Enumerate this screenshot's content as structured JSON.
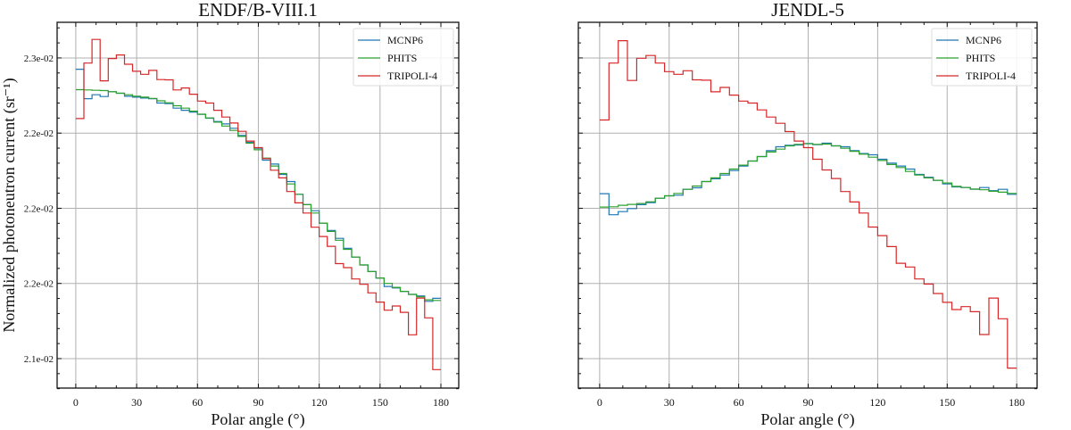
{
  "chart_data": [
    {
      "type": "line",
      "step": true,
      "title": "ENDF/B-VIII.1",
      "xlabel": "Polar angle (°)",
      "ylabel": "Normalized photoneutron current (sr⁻¹)",
      "xlim": [
        -9.2,
        188.8
      ],
      "ylim": [
        0.020804,
        0.023237
      ],
      "xticks": [
        0,
        30,
        60,
        90,
        120,
        150,
        180
      ],
      "xtick_labels": [
        "0",
        "30",
        "60",
        "90",
        "120",
        "150",
        "180"
      ],
      "yticks": [
        0.023,
        0.0225,
        0.022,
        0.0215,
        0.021
      ],
      "ytick_labels": [
        "2.3e-02",
        "2.2e-02",
        "2.2e-02",
        "2.2e-02",
        "2.1e-02"
      ],
      "grid": true,
      "legend": "top-right",
      "bin_width": 4,
      "series": [
        {
          "name": "MCNP6",
          "color": "#1f77b4",
          "values": [
            0.022925,
            0.022729,
            0.022755,
            0.022743,
            0.022775,
            0.022765,
            0.022745,
            0.022739,
            0.022733,
            0.022729,
            0.0227,
            0.022696,
            0.022666,
            0.022652,
            0.02264,
            0.022625,
            0.022599,
            0.022577,
            0.022561,
            0.022532,
            0.022484,
            0.022439,
            0.022399,
            0.02232,
            0.022294,
            0.022225,
            0.022178,
            0.022093,
            0.022024,
            0.021984,
            0.021901,
            0.021852,
            0.0218,
            0.021733,
            0.021676,
            0.021623,
            0.021579,
            0.021536,
            0.02148,
            0.02147,
            0.021447,
            0.021427,
            0.021417,
            0.021381,
            0.021401
          ]
        },
        {
          "name": "PHITS",
          "color": "#2ca02c",
          "values": [
            0.022789,
            0.022787,
            0.022785,
            0.022783,
            0.022775,
            0.022765,
            0.022755,
            0.022745,
            0.022739,
            0.022731,
            0.022715,
            0.022702,
            0.022682,
            0.022666,
            0.022646,
            0.022626,
            0.022601,
            0.022573,
            0.022547,
            0.022518,
            0.022478,
            0.022433,
            0.022389,
            0.022334,
            0.022281,
            0.022231,
            0.022162,
            0.022093,
            0.022024,
            0.021968,
            0.021901,
            0.021846,
            0.021787,
            0.021727,
            0.021676,
            0.021623,
            0.021579,
            0.021536,
            0.0215,
            0.021474,
            0.021447,
            0.021427,
            0.021411,
            0.021391,
            0.021387
          ]
        },
        {
          "name": "TRIPOLI-4",
          "color": "#d62728",
          "values": [
            0.022597,
            0.022966,
            0.023123,
            0.022848,
            0.022996,
            0.02302,
            0.022958,
            0.022911,
            0.022891,
            0.022917,
            0.022856,
            0.022854,
            0.022787,
            0.0228,
            0.022759,
            0.022713,
            0.0227,
            0.022652,
            0.022607,
            0.022567,
            0.022512,
            0.022447,
            0.022403,
            0.02233,
            0.022253,
            0.022202,
            0.022111,
            0.022036,
            0.021968,
            0.021874,
            0.021812,
            0.021747,
            0.021632,
            0.021605,
            0.02153,
            0.021494,
            0.021437,
            0.021376,
            0.021322,
            0.02135,
            0.021308,
            0.021158,
            0.021403,
            0.021271,
            0.020927
          ]
        }
      ]
    },
    {
      "type": "line",
      "step": true,
      "title": "JENDL-5",
      "xlabel": "Polar angle (°)",
      "ylabel": "",
      "xlim": [
        -9.2,
        188.8
      ],
      "ylim": [
        0.020804,
        0.023237
      ],
      "xticks": [
        0,
        30,
        60,
        90,
        120,
        150,
        180
      ],
      "xtick_labels": [
        "0",
        "30",
        "60",
        "90",
        "120",
        "150",
        "180"
      ],
      "yticks": [
        0.023,
        0.0225,
        0.022,
        0.0215,
        0.021
      ],
      "ytick_labels": [],
      "grid": true,
      "legend": "top-right",
      "bin_width": 4,
      "series": [
        {
          "name": "MCNP6",
          "color": "#1f77b4",
          "values": [
            0.022097,
            0.021957,
            0.021978,
            0.021998,
            0.022024,
            0.022038,
            0.022067,
            0.022083,
            0.022087,
            0.022126,
            0.022136,
            0.022178,
            0.022196,
            0.022221,
            0.022251,
            0.022281,
            0.022314,
            0.022344,
            0.022383,
            0.022409,
            0.022419,
            0.022421,
            0.022431,
            0.022423,
            0.022433,
            0.022415,
            0.022409,
            0.022383,
            0.022364,
            0.022356,
            0.022326,
            0.0223,
            0.022281,
            0.022261,
            0.022225,
            0.022206,
            0.022186,
            0.022162,
            0.022142,
            0.022138,
            0.022126,
            0.022138,
            0.022117,
            0.022126,
            0.022093
          ]
        },
        {
          "name": "PHITS",
          "color": "#2ca02c",
          "values": [
            0.022008,
            0.02201,
            0.02202,
            0.022026,
            0.022032,
            0.022043,
            0.022067,
            0.022083,
            0.022099,
            0.022126,
            0.022148,
            0.022178,
            0.022202,
            0.022231,
            0.022261,
            0.022287,
            0.022314,
            0.022344,
            0.022374,
            0.022393,
            0.022415,
            0.022425,
            0.022429,
            0.022425,
            0.022427,
            0.022415,
            0.022399,
            0.022379,
            0.02236,
            0.02234,
            0.022318,
            0.022291,
            0.022271,
            0.022245,
            0.022221,
            0.022202,
            0.022186,
            0.022168,
            0.022146,
            0.022138,
            0.022128,
            0.022123,
            0.022113,
            0.022107,
            0.022099
          ]
        },
        {
          "name": "TRIPOLI-4",
          "color": "#d62728",
          "values": [
            0.022587,
            0.022966,
            0.023115,
            0.02285,
            0.022998,
            0.023016,
            0.022966,
            0.022909,
            0.022891,
            0.022915,
            0.022854,
            0.022852,
            0.022775,
            0.022804,
            0.022753,
            0.022713,
            0.0227,
            0.022654,
            0.022607,
            0.022565,
            0.02251,
            0.022447,
            0.022403,
            0.022326,
            0.022255,
            0.022198,
            0.022111,
            0.022042,
            0.021968,
            0.021875,
            0.021818,
            0.021745,
            0.021634,
            0.021609,
            0.02153,
            0.021496,
            0.021433,
            0.021374,
            0.021326,
            0.021346,
            0.021312,
            0.02116,
            0.021403,
            0.021265,
            0.020937
          ]
        }
      ]
    }
  ]
}
